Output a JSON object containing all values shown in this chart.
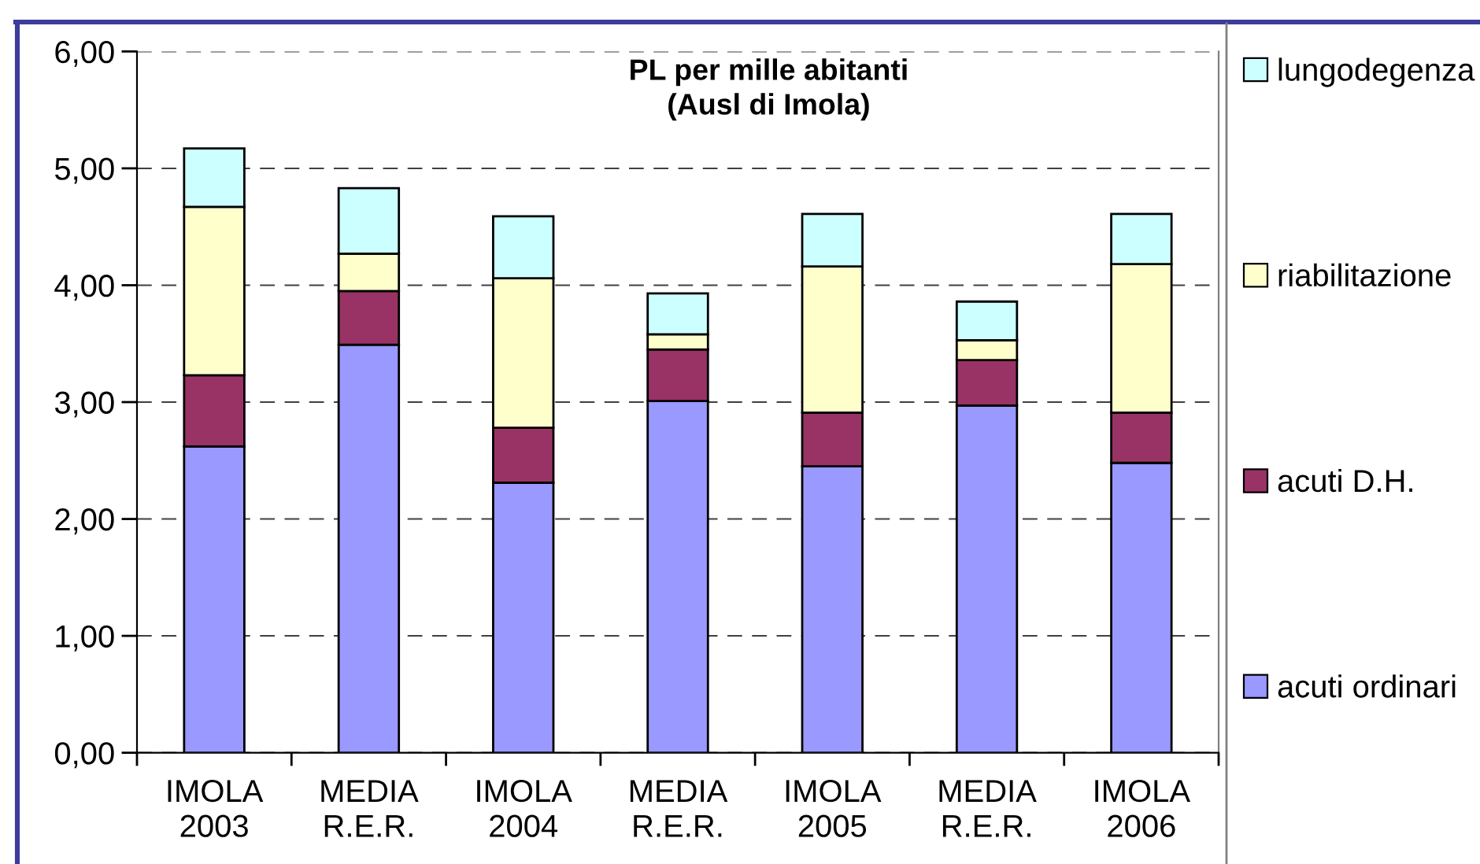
{
  "chart_data": {
    "type": "bar",
    "stacked": true,
    "title": "PL per mille abitanti\n(Ausl di Imola)",
    "categories": [
      "IMOLA\n2003",
      "MEDIA\nR.E.R.",
      "IMOLA\n2004",
      "MEDIA\nR.E.R.",
      "IMOLA\n2005",
      "MEDIA\nR.E.R.",
      "IMOLA\n2006"
    ],
    "series": [
      {
        "name": "acuti ordinari",
        "color": "#9999ff",
        "values": [
          2.62,
          3.49,
          2.31,
          3.01,
          2.45,
          2.97,
          2.48
        ]
      },
      {
        "name": "acuti D.H.",
        "color": "#993366",
        "values": [
          0.61,
          0.46,
          0.47,
          0.44,
          0.46,
          0.39,
          0.43
        ]
      },
      {
        "name": "riabilitazione",
        "color": "#ffffcc",
        "values": [
          1.44,
          0.32,
          1.28,
          0.13,
          1.25,
          0.17,
          1.27
        ]
      },
      {
        "name": "lungodegenza",
        "color": "#ccffff",
        "values": [
          0.5,
          0.56,
          0.53,
          0.35,
          0.45,
          0.33,
          0.43
        ]
      }
    ],
    "ylim": [
      0,
      6
    ],
    "yticks": [
      {
        "value": 0,
        "label": "0,00"
      },
      {
        "value": 1,
        "label": "1,00"
      },
      {
        "value": 2,
        "label": "2,00"
      },
      {
        "value": 3,
        "label": "3,00"
      },
      {
        "value": 4,
        "label": "4,00"
      },
      {
        "value": 5,
        "label": "5,00"
      },
      {
        "value": 6,
        "label": "6,00"
      }
    ],
    "grid": "y",
    "legend": "right"
  }
}
